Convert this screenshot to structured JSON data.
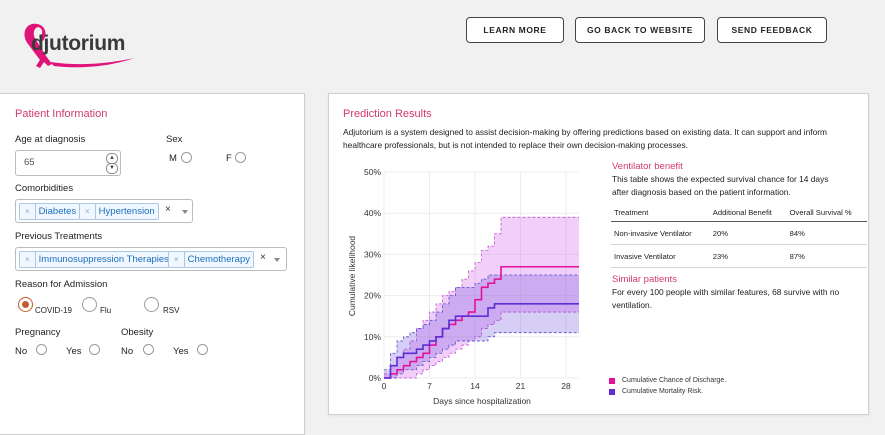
{
  "brand": {
    "name": "djutorium",
    "ribbon_color": "#e0137a"
  },
  "header": {
    "buttons": [
      {
        "label": "LEARN MORE"
      },
      {
        "label": "GO BACK TO WEBSITE"
      },
      {
        "label": "SEND FEEDBACK"
      }
    ]
  },
  "patient": {
    "title": "Patient Information",
    "age_label": "Age at diagnosis",
    "age_value": "65",
    "sex_label": "Sex",
    "sex_m": "M",
    "sex_f": "F",
    "comorbidities_label": "Comorbidities",
    "comorbidities": [
      "Diabetes",
      "Hypertension"
    ],
    "prev_treatments_label": "Previous Treatments",
    "prev_treatments": [
      "Immunosuppression Therapies",
      "Chemotherapy"
    ],
    "reason_label": "Reason for Admission",
    "reason_options": [
      "COVID-19",
      "Flu",
      "RSV"
    ],
    "reason_selected": "COVID-19",
    "pregnancy_label": "Pregnancy",
    "obesity_label": "Obesity",
    "no": "No",
    "yes": "Yes",
    "clear": "×"
  },
  "results": {
    "title": "Prediction Results",
    "description": "Adjutorium is a system designed to assist decision-making by offering predictions based on existing data. It can support and inform healthcare professionals, but is not intended to replace their own decision-making processes.",
    "vent_title": "Ventilator benefit",
    "vent_text": "This table shows the expected survival chance for 14 days after diagnosis based on the patient information.",
    "table": {
      "headers": [
        "Treatment",
        "Additional Benefit",
        "Overall Survival %"
      ],
      "rows": [
        [
          "Non-invasive Ventilator",
          "20%",
          "84%"
        ],
        [
          "Invasive Ventilator",
          "23%",
          "87%"
        ]
      ]
    },
    "similar_title": "Similar patients",
    "similar_text": "For every 100 people with similar features, 68 survive with no ventilation.",
    "accent_color": "#d23a6e"
  },
  "chart_data": {
    "type": "line",
    "xlabel": "Days since hospitalization",
    "ylabel": "Cumulative likelihood",
    "xticks": [
      0,
      7,
      14,
      21,
      28
    ],
    "yticks": [
      "0%",
      "10%",
      "20%",
      "30%",
      "40%",
      "50%"
    ],
    "xlim": [
      0,
      30
    ],
    "ylim": [
      0,
      50
    ],
    "step": true,
    "series": [
      {
        "name": "Cumulative Chance of Discharge.",
        "color": "#e0139a",
        "x": [
          0,
          1,
          2,
          3,
          4,
          5,
          6,
          7,
          8,
          9,
          10,
          11,
          12,
          13,
          14,
          15,
          16,
          17,
          18,
          30
        ],
        "y": [
          0,
          1,
          2,
          3,
          4,
          5,
          6,
          8,
          10,
          12,
          13,
          14,
          15,
          16,
          19,
          22,
          23,
          24,
          27,
          27
        ],
        "lower": [
          0,
          0,
          0,
          0,
          0,
          1,
          2,
          3,
          4,
          5,
          6,
          7,
          8,
          9,
          10,
          12,
          13,
          14,
          16,
          16
        ],
        "upper": [
          1,
          3,
          5,
          7,
          9,
          12,
          14,
          16,
          18,
          20,
          21,
          22,
          24,
          26,
          28,
          31,
          32,
          35,
          39,
          39
        ]
      },
      {
        "name": "Cumulative Mortality Risk.",
        "color": "#5b2fd6",
        "x": [
          0,
          1,
          2,
          3,
          4,
          5,
          6,
          7,
          8,
          9,
          10,
          11,
          12,
          13,
          14,
          15,
          16,
          17,
          30
        ],
        "y": [
          0,
          3,
          5,
          6,
          6,
          7,
          8,
          9,
          10,
          12,
          14,
          15,
          15,
          15,
          15,
          15,
          17,
          18,
          18
        ],
        "lower": [
          0,
          0,
          1,
          2,
          2,
          3,
          4,
          5,
          6,
          7,
          8,
          9,
          9,
          9,
          9,
          9,
          10,
          11,
          11
        ],
        "upper": [
          2,
          6,
          9,
          10,
          11,
          12,
          13,
          14,
          16,
          18,
          20,
          22,
          22,
          22,
          23,
          24,
          25,
          25,
          25
        ]
      }
    ]
  }
}
